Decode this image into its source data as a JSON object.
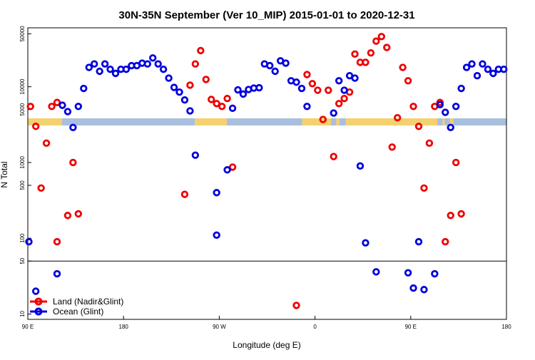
{
  "chart_data": {
    "type": "scatter",
    "title": "30N-35N September (Ver 10_MIP)   2015-01-01 to 2020-12-31",
    "xlabel": "Longitude (deg E)",
    "ylabel": "N Total",
    "y_scale": "log",
    "xlim": [
      90,
      540
    ],
    "ylim": [
      8.5,
      60000
    ],
    "x_ticks": [
      {
        "value": 90,
        "label": "90 E"
      },
      {
        "value": 180,
        "label": "180"
      },
      {
        "value": 270,
        "label": "90 W"
      },
      {
        "value": 360,
        "label": "0"
      },
      {
        "value": 450,
        "label": "90 E"
      },
      {
        "value": 540,
        "label": "180"
      }
    ],
    "y_ticks": [
      {
        "value": 10,
        "label": "10"
      },
      {
        "value": 50,
        "label": "50"
      },
      {
        "value": 100,
        "label": "100"
      },
      {
        "value": 500,
        "label": "500"
      },
      {
        "value": 1000,
        "label": "1000"
      },
      {
        "value": 5000,
        "label": "5000"
      },
      {
        "value": 10000,
        "label": "10000"
      },
      {
        "value": 50000,
        "label": "50000"
      }
    ],
    "reference_line_y": 50,
    "legend_position": "bottom-left",
    "land_strip_color": "#f5d06e",
    "ocean_strip_color": "#a9bfde",
    "surface_strip": [
      {
        "from": 90,
        "to": 122,
        "type": "land"
      },
      {
        "from": 122,
        "to": 247,
        "type": "ocean"
      },
      {
        "from": 247,
        "to": 277,
        "type": "land"
      },
      {
        "from": 277,
        "to": 348,
        "type": "ocean"
      },
      {
        "from": 348,
        "to": 375,
        "type": "land"
      },
      {
        "from": 375,
        "to": 380,
        "type": "ocean"
      },
      {
        "from": 380,
        "to": 383,
        "type": "land"
      },
      {
        "from": 383,
        "to": 389,
        "type": "ocean"
      },
      {
        "from": 389,
        "to": 475,
        "type": "land"
      },
      {
        "from": 475,
        "to": 480,
        "type": "ocean"
      },
      {
        "from": 480,
        "to": 482,
        "type": "land"
      },
      {
        "from": 482,
        "to": 487,
        "type": "ocean"
      },
      {
        "from": 487,
        "to": 490,
        "type": "land"
      },
      {
        "from": 490,
        "to": 540,
        "type": "ocean"
      }
    ],
    "series": [
      {
        "name": "Land (Nadir&Glint)",
        "color": "#ee0000",
        "points": [
          [
            92.5,
            5500
          ],
          [
            97.5,
            3000
          ],
          [
            102.5,
            460
          ],
          [
            107.5,
            1800
          ],
          [
            112.5,
            5500
          ],
          [
            117.5,
            6200
          ],
          [
            117.5,
            90
          ],
          [
            127.5,
            200
          ],
          [
            132.5,
            1000
          ],
          [
            137.5,
            210
          ],
          [
            237.5,
            380
          ],
          [
            242.5,
            10500
          ],
          [
            247.5,
            20000
          ],
          [
            252.5,
            30000
          ],
          [
            257.5,
            12500
          ],
          [
            262.5,
            6800
          ],
          [
            267.5,
            6000
          ],
          [
            272.5,
            5500
          ],
          [
            277.5,
            7000
          ],
          [
            282.5,
            870
          ],
          [
            342.5,
            13
          ],
          [
            352.5,
            14500
          ],
          [
            357.5,
            11000
          ],
          [
            362.5,
            9000
          ],
          [
            367.5,
            3700
          ],
          [
            372.5,
            9000
          ],
          [
            377.5,
            1200
          ],
          [
            382.5,
            6000
          ],
          [
            387.5,
            7000
          ],
          [
            392.5,
            8500
          ],
          [
            397.5,
            27000
          ],
          [
            402.5,
            21000
          ],
          [
            407.5,
            21000
          ],
          [
            412.5,
            28000
          ],
          [
            417.5,
            40000
          ],
          [
            422.5,
            46000
          ],
          [
            427.5,
            33000
          ],
          [
            432.5,
            1600
          ],
          [
            437.5,
            3900
          ],
          [
            442.5,
            18000
          ],
          [
            447.5,
            12000
          ],
          [
            452.5,
            5500
          ],
          [
            457.5,
            3000
          ],
          [
            462.5,
            460
          ],
          [
            467.5,
            1800
          ],
          [
            472.5,
            5500
          ],
          [
            477.5,
            6200
          ],
          [
            482.5,
            90
          ],
          [
            487.5,
            200
          ],
          [
            492.5,
            1000
          ],
          [
            497.5,
            210
          ]
        ]
      },
      {
        "name": "Ocean (Glint)",
        "color": "#0000dd",
        "points": [
          [
            91,
            90
          ],
          [
            97.5,
            20
          ],
          [
            117.5,
            34
          ],
          [
            122.5,
            5700
          ],
          [
            127.5,
            4700
          ],
          [
            132.5,
            2900
          ],
          [
            137.5,
            5500
          ],
          [
            142.5,
            9500
          ],
          [
            147.5,
            18000
          ],
          [
            152.5,
            20000
          ],
          [
            157.5,
            16000
          ],
          [
            162.5,
            20000
          ],
          [
            167.5,
            17000
          ],
          [
            172.5,
            15000
          ],
          [
            177.5,
            17000
          ],
          [
            182.5,
            17000
          ],
          [
            187.5,
            19000
          ],
          [
            192.5,
            19000
          ],
          [
            197.5,
            20500
          ],
          [
            202.5,
            20000
          ],
          [
            207.5,
            24000
          ],
          [
            212.5,
            20000
          ],
          [
            217.5,
            17000
          ],
          [
            222.5,
            13000
          ],
          [
            227.5,
            9800
          ],
          [
            232.5,
            8500
          ],
          [
            237.5,
            6700
          ],
          [
            242.5,
            4800
          ],
          [
            247.5,
            1250
          ],
          [
            267.5,
            110
          ],
          [
            267.5,
            400
          ],
          [
            277.5,
            800
          ],
          [
            282.5,
            5200
          ],
          [
            287.5,
            9100
          ],
          [
            292.5,
            8000
          ],
          [
            297.5,
            9200
          ],
          [
            302.5,
            9600
          ],
          [
            307.5,
            9700
          ],
          [
            312.5,
            20000
          ],
          [
            317.5,
            19000
          ],
          [
            322.5,
            16000
          ],
          [
            327.5,
            22000
          ],
          [
            332.5,
            20500
          ],
          [
            337.5,
            12000
          ],
          [
            342.5,
            11500
          ],
          [
            347.5,
            9500
          ],
          [
            352.5,
            5500
          ],
          [
            377.5,
            4500
          ],
          [
            382.5,
            12000
          ],
          [
            387.5,
            9000
          ],
          [
            392.5,
            14000
          ],
          [
            397.5,
            13000
          ],
          [
            402.5,
            900
          ],
          [
            407.5,
            87
          ],
          [
            417.5,
            36
          ],
          [
            447.5,
            35
          ],
          [
            452.5,
            22
          ],
          [
            457.5,
            90
          ],
          [
            462.5,
            21
          ],
          [
            472.5,
            34
          ],
          [
            477.5,
            5800
          ],
          [
            482.5,
            4600
          ],
          [
            487.5,
            2900
          ],
          [
            492.5,
            5500
          ],
          [
            497.5,
            9500
          ],
          [
            502.5,
            18000
          ],
          [
            507.5,
            20000
          ],
          [
            512.5,
            14000
          ],
          [
            517.5,
            20000
          ],
          [
            522.5,
            17000
          ],
          [
            527.5,
            15000
          ],
          [
            532.5,
            17000
          ],
          [
            537.5,
            17000
          ]
        ]
      }
    ]
  }
}
